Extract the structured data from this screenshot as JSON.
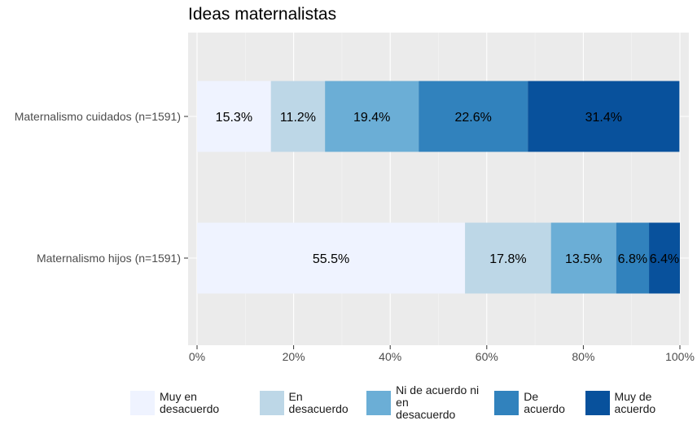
{
  "chart_data": {
    "type": "bar",
    "orientation": "horizontal",
    "stacked": true,
    "title": "Ideas maternalistas",
    "xlabel": "",
    "ylabel": "",
    "xlim": [
      0,
      100
    ],
    "x_ticks": [
      "0%",
      "20%",
      "40%",
      "60%",
      "80%",
      "100%"
    ],
    "grid": true,
    "legend_position": "bottom",
    "categories": [
      "Maternalismo cuidados (n=1591)",
      "Maternalismo hijos (n=1591)"
    ],
    "series": [
      {
        "name": "Muy en desacuerdo",
        "color": "#eff3ff",
        "values": [
          15.3,
          55.5
        ],
        "labels": [
          "15.3%",
          "55.5%"
        ]
      },
      {
        "name": "En desacuerdo",
        "color": "#bdd7e7",
        "values": [
          11.2,
          17.8
        ],
        "labels": [
          "11.2%",
          "17.8%"
        ]
      },
      {
        "name": "Ni de acuerdo ni en\ndesacuerdo",
        "color": "#6baed6",
        "values": [
          19.4,
          13.5
        ],
        "labels": [
          "19.4%",
          "13.5%"
        ]
      },
      {
        "name": "De acuerdo",
        "color": "#3182bd",
        "values": [
          22.6,
          6.8
        ],
        "labels": [
          "22.6%",
          "6.8%"
        ]
      },
      {
        "name": "Muy de acuerdo",
        "color": "#08519c",
        "values": [
          31.4,
          6.4
        ],
        "labels": [
          "31.4%",
          "6.4%"
        ]
      }
    ]
  }
}
